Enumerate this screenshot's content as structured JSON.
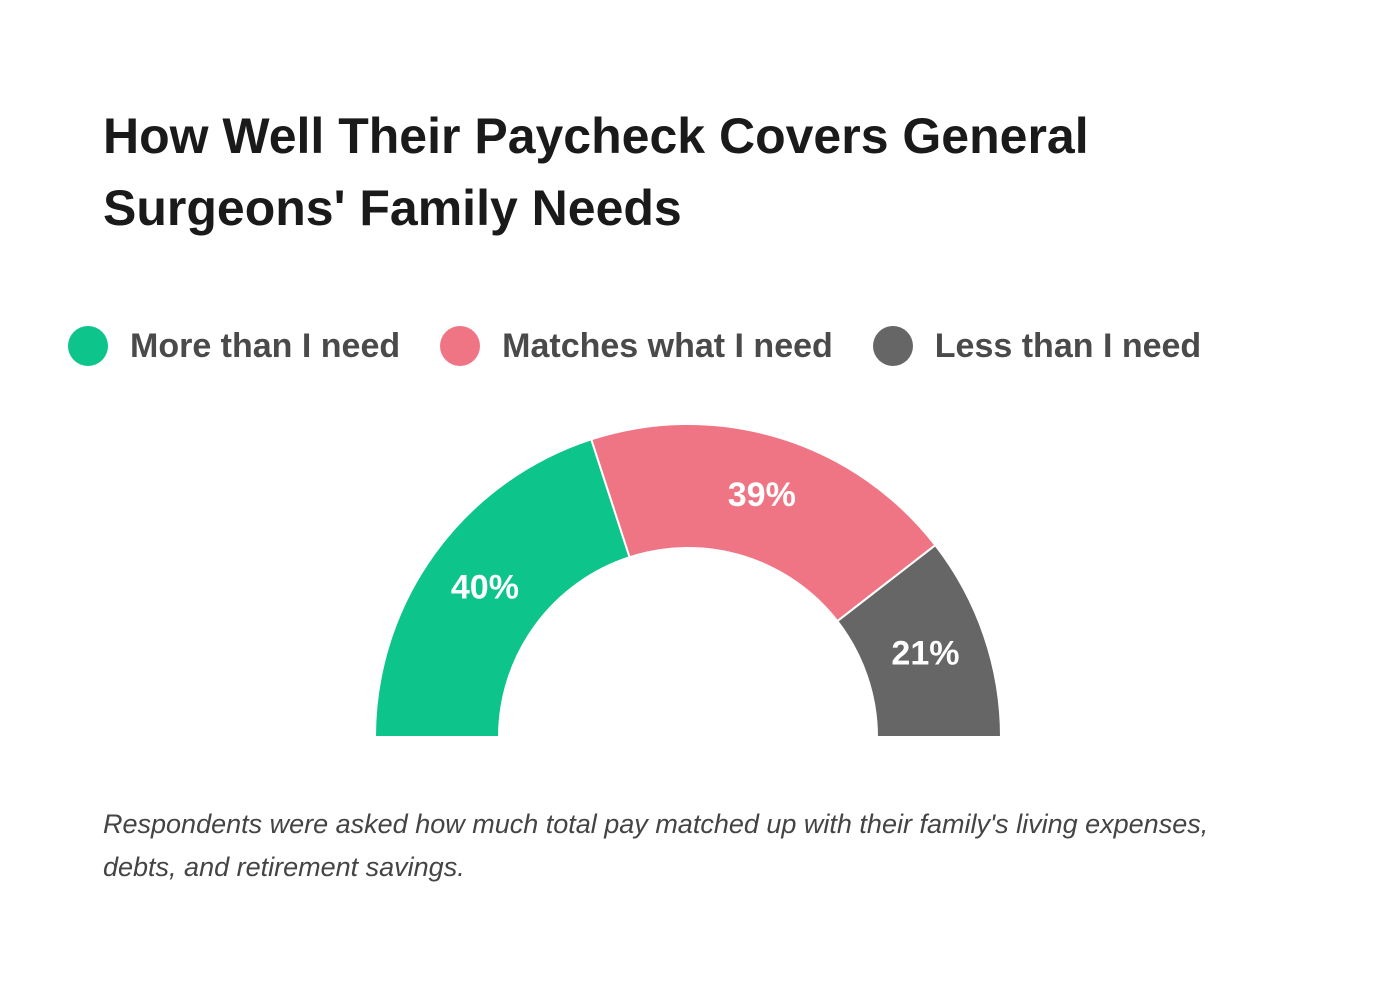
{
  "chart_data": {
    "type": "pie",
    "title": "How Well Their Paycheck Covers General Surgeons' Family Needs",
    "categories": [
      "More than I need",
      "Matches what I need",
      "Less than I need"
    ],
    "values": [
      40,
      39,
      21
    ],
    "value_labels": [
      "40%",
      "39%",
      "21%"
    ],
    "colors": [
      "#0dc48a",
      "#ef7585",
      "#666666"
    ],
    "note": "Respondents were asked how much total pay matched up with their family's living expenses, debts, and retirement savings."
  }
}
